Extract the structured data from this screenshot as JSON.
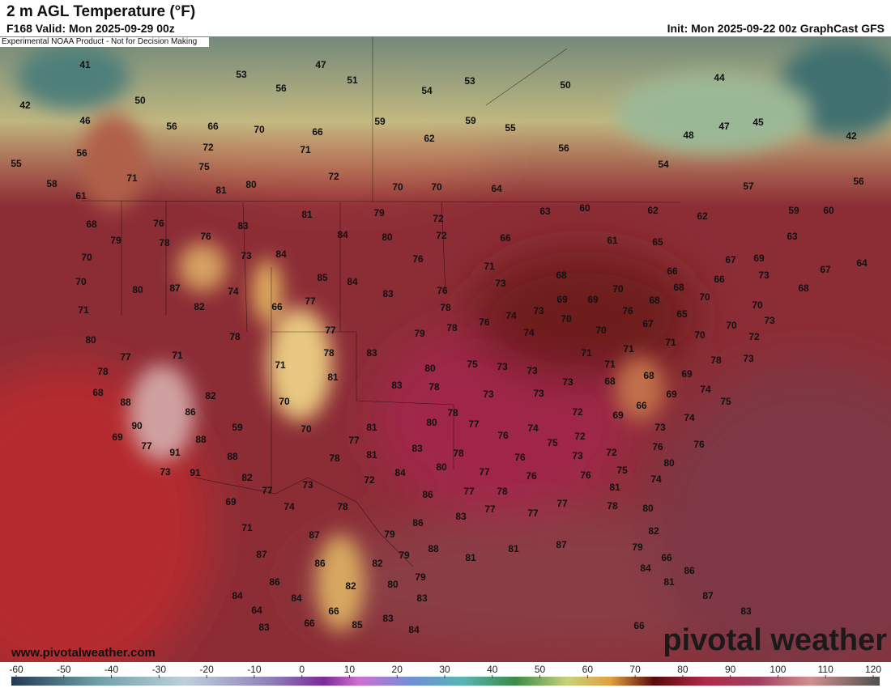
{
  "header": {
    "title": "2 m AGL Temperature (°F)",
    "valid": "F168 Valid: Mon 2025-09-29 00z",
    "init": "Init: Mon 2025-09-22 00z GraphCast GFS",
    "disclaimer": "Experimental NOAA Product - Not for Decision Making"
  },
  "footer": {
    "url": "www.pivotalweather.com",
    "brand": "pivotal weather"
  },
  "colorbar": {
    "ticks": [
      -60,
      -50,
      -40,
      -30,
      -20,
      -10,
      0,
      10,
      20,
      30,
      40,
      50,
      60,
      70,
      80,
      90,
      100,
      110,
      120
    ]
  },
  "labels": [
    41,
    42,
    46,
    50,
    56,
    55,
    56,
    53,
    47,
    51,
    56,
    54,
    53,
    50,
    44,
    66,
    70,
    66,
    59,
    59,
    55,
    47,
    45,
    42,
    48,
    62,
    72,
    71,
    56,
    75,
    54,
    71,
    58,
    72,
    80,
    81,
    70,
    70,
    64,
    57,
    56,
    61,
    60,
    62,
    62,
    63,
    59,
    60,
    68,
    76,
    83,
    81,
    79,
    72,
    65,
    63,
    79,
    78,
    76,
    84,
    80,
    72,
    66,
    61,
    70,
    73,
    84,
    76,
    71,
    67,
    69,
    67,
    64,
    70,
    80,
    87,
    85,
    84,
    83,
    76,
    73,
    68,
    66,
    68,
    66,
    73,
    68,
    74,
    77,
    66,
    82,
    70,
    69,
    69,
    68,
    70,
    70,
    71,
    78,
    73,
    74,
    70,
    76,
    65,
    73,
    80,
    77,
    78,
    79,
    78,
    76,
    74,
    70,
    67,
    70,
    70,
    72,
    77,
    71,
    78,
    83,
    71,
    80,
    75,
    73,
    73,
    71,
    71,
    71,
    71,
    78,
    73,
    78,
    81,
    68,
    83,
    78,
    73,
    73,
    68,
    68,
    69,
    82,
    70,
    73,
    69,
    74,
    75,
    88,
    86,
    72,
    69,
    66,
    78,
    74,
    90,
    59,
    70,
    81,
    80,
    77,
    74,
    73,
    69,
    88,
    77,
    76,
    75,
    72,
    72,
    76,
    76,
    77,
    91,
    83,
    81,
    78,
    88,
    78,
    76,
    73,
    73,
    91,
    84,
    80,
    77,
    76,
    76,
    75,
    80,
    82,
    72,
    73,
    74,
    77,
    78,
    77,
    81,
    86,
    69,
    74,
    78,
    77,
    77,
    77,
    78,
    80,
    83,
    86,
    71,
    87,
    79,
    82,
    81,
    81,
    87,
    87,
    88,
    79,
    79,
    66,
    86,
    82,
    84,
    86,
    86,
    79,
    82,
    80,
    81,
    84,
    84,
    83,
    87,
    64,
    66,
    83,
    83,
    83,
    66,
    85,
    84,
    66
  ]
}
